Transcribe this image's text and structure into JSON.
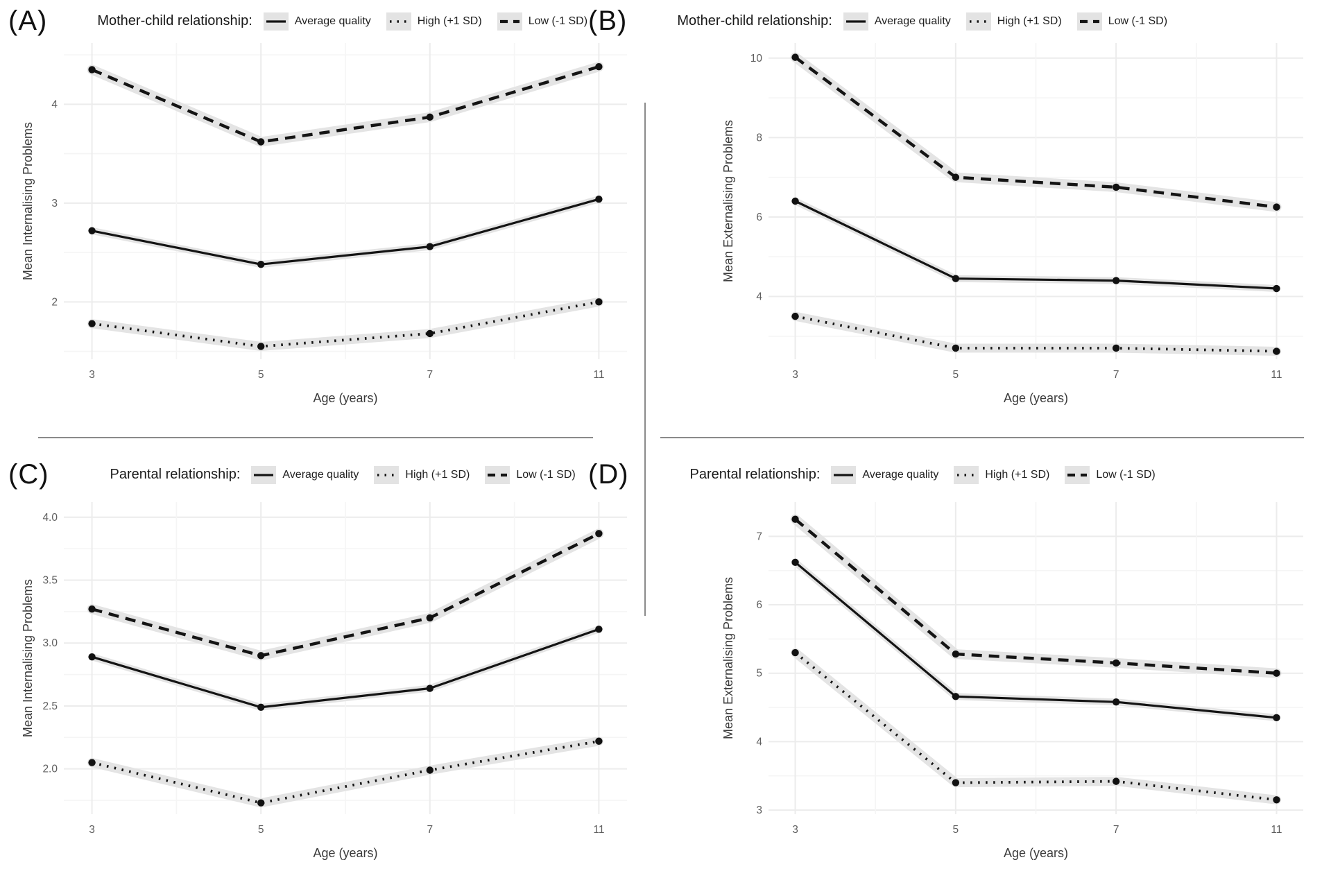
{
  "figure": {
    "xlabel": "Age (years)",
    "legend": {
      "items": [
        {
          "label": "Average quality",
          "style": "solid"
        },
        {
          "label": "High (+1 SD)",
          "style": "dotted"
        },
        {
          "label": "Low (-1 SD)",
          "style": "dashed"
        }
      ]
    },
    "colors": {
      "line": "#141414",
      "point": "#111111",
      "ribbon": "#e4e4e4",
      "grid_major": "#ececec",
      "grid_minor": "#f5f5f5",
      "axis_text": "#5f5f5f",
      "divider": "#8a8a8a",
      "legend_key_bg": "#e3e3e3"
    }
  },
  "chart_data": [
    {
      "id": "A",
      "panel_label": "(A)",
      "group_label": "Mother-child relationship:",
      "type": "line",
      "xlabel": "Age (years)",
      "ylabel": "Mean Internalising Problems",
      "categories": [
        "3",
        "5",
        "7",
        "11"
      ],
      "ylim": [
        1.42,
        4.62
      ],
      "yticks": [
        {
          "v": 2,
          "label": "2"
        },
        {
          "v": 3,
          "label": "3"
        },
        {
          "v": 4,
          "label": "4"
        }
      ],
      "yminor": [
        1.5,
        2.5,
        3.5,
        4.5
      ],
      "grid": true,
      "legend_position": "top",
      "series": [
        {
          "name": "Low (-1 SD)",
          "style": "dashed",
          "values": [
            4.35,
            3.62,
            3.87,
            4.38
          ]
        },
        {
          "name": "Average quality",
          "style": "solid",
          "values": [
            2.72,
            2.38,
            2.56,
            3.04
          ]
        },
        {
          "name": "High (+1 SD)",
          "style": "dotted",
          "values": [
            1.78,
            1.55,
            1.68,
            2.0
          ]
        }
      ]
    },
    {
      "id": "B",
      "panel_label": "(B)",
      "group_label": "Mother-child relationship:",
      "type": "line",
      "xlabel": "Age (years)",
      "ylabel": "Mean Externalising Problems",
      "categories": [
        "3",
        "5",
        "7",
        "11"
      ],
      "ylim": [
        2.42,
        10.38
      ],
      "yticks": [
        {
          "v": 4,
          "label": "4"
        },
        {
          "v": 6,
          "label": "6"
        },
        {
          "v": 8,
          "label": "8"
        },
        {
          "v": 10,
          "label": "10"
        }
      ],
      "yminor": [
        3,
        5,
        7,
        9
      ],
      "grid": true,
      "legend_position": "top",
      "series": [
        {
          "name": "Low (-1 SD)",
          "style": "dashed",
          "values": [
            10.02,
            7.0,
            6.75,
            6.25
          ]
        },
        {
          "name": "Average quality",
          "style": "solid",
          "values": [
            6.4,
            4.45,
            4.4,
            4.2
          ]
        },
        {
          "name": "High (+1 SD)",
          "style": "dotted",
          "values": [
            3.5,
            2.7,
            2.7,
            2.62
          ]
        }
      ]
    },
    {
      "id": "C",
      "panel_label": "(C)",
      "group_label": "Parental relationship:",
      "type": "line",
      "xlabel": "Age (years)",
      "ylabel": "Mean Internalising Problems",
      "categories": [
        "3",
        "5",
        "7",
        "11"
      ],
      "ylim": [
        1.64,
        4.12
      ],
      "yticks": [
        {
          "v": 2,
          "label": "2.0"
        },
        {
          "v": 2.5,
          "label": "2.5"
        },
        {
          "v": 3,
          "label": "3.0"
        },
        {
          "v": 3.5,
          "label": "3.5"
        },
        {
          "v": 4,
          "label": "4.0"
        }
      ],
      "yminor": [
        1.75,
        2.25,
        2.75,
        3.25,
        3.75
      ],
      "grid": true,
      "legend_position": "top",
      "series": [
        {
          "name": "Low (-1 SD)",
          "style": "dashed",
          "values": [
            3.27,
            2.9,
            3.2,
            3.87
          ]
        },
        {
          "name": "Average quality",
          "style": "solid",
          "values": [
            2.89,
            2.49,
            2.64,
            3.11
          ]
        },
        {
          "name": "High (+1 SD)",
          "style": "dotted",
          "values": [
            2.05,
            1.73,
            1.99,
            2.22
          ]
        }
      ]
    },
    {
      "id": "D",
      "panel_label": "(D)",
      "group_label": "Parental relationship:",
      "type": "line",
      "xlabel": "Age (years)",
      "ylabel": "Mean Externalising Problems",
      "categories": [
        "3",
        "5",
        "7",
        "11"
      ],
      "ylim": [
        2.94,
        7.5
      ],
      "yticks": [
        {
          "v": 3,
          "label": "3"
        },
        {
          "v": 4,
          "label": "4"
        },
        {
          "v": 5,
          "label": "5"
        },
        {
          "v": 6,
          "label": "6"
        },
        {
          "v": 7,
          "label": "7"
        }
      ],
      "yminor": [
        3.5,
        4.5,
        5.5,
        6.5
      ],
      "grid": true,
      "legend_position": "top",
      "series": [
        {
          "name": "Low (-1 SD)",
          "style": "dashed",
          "values": [
            7.25,
            5.28,
            5.15,
            5.0
          ]
        },
        {
          "name": "Average quality",
          "style": "solid",
          "values": [
            6.62,
            4.66,
            4.58,
            4.35
          ]
        },
        {
          "name": "High (+1 SD)",
          "style": "dotted",
          "values": [
            5.3,
            3.4,
            3.42,
            3.15
          ]
        }
      ]
    }
  ]
}
